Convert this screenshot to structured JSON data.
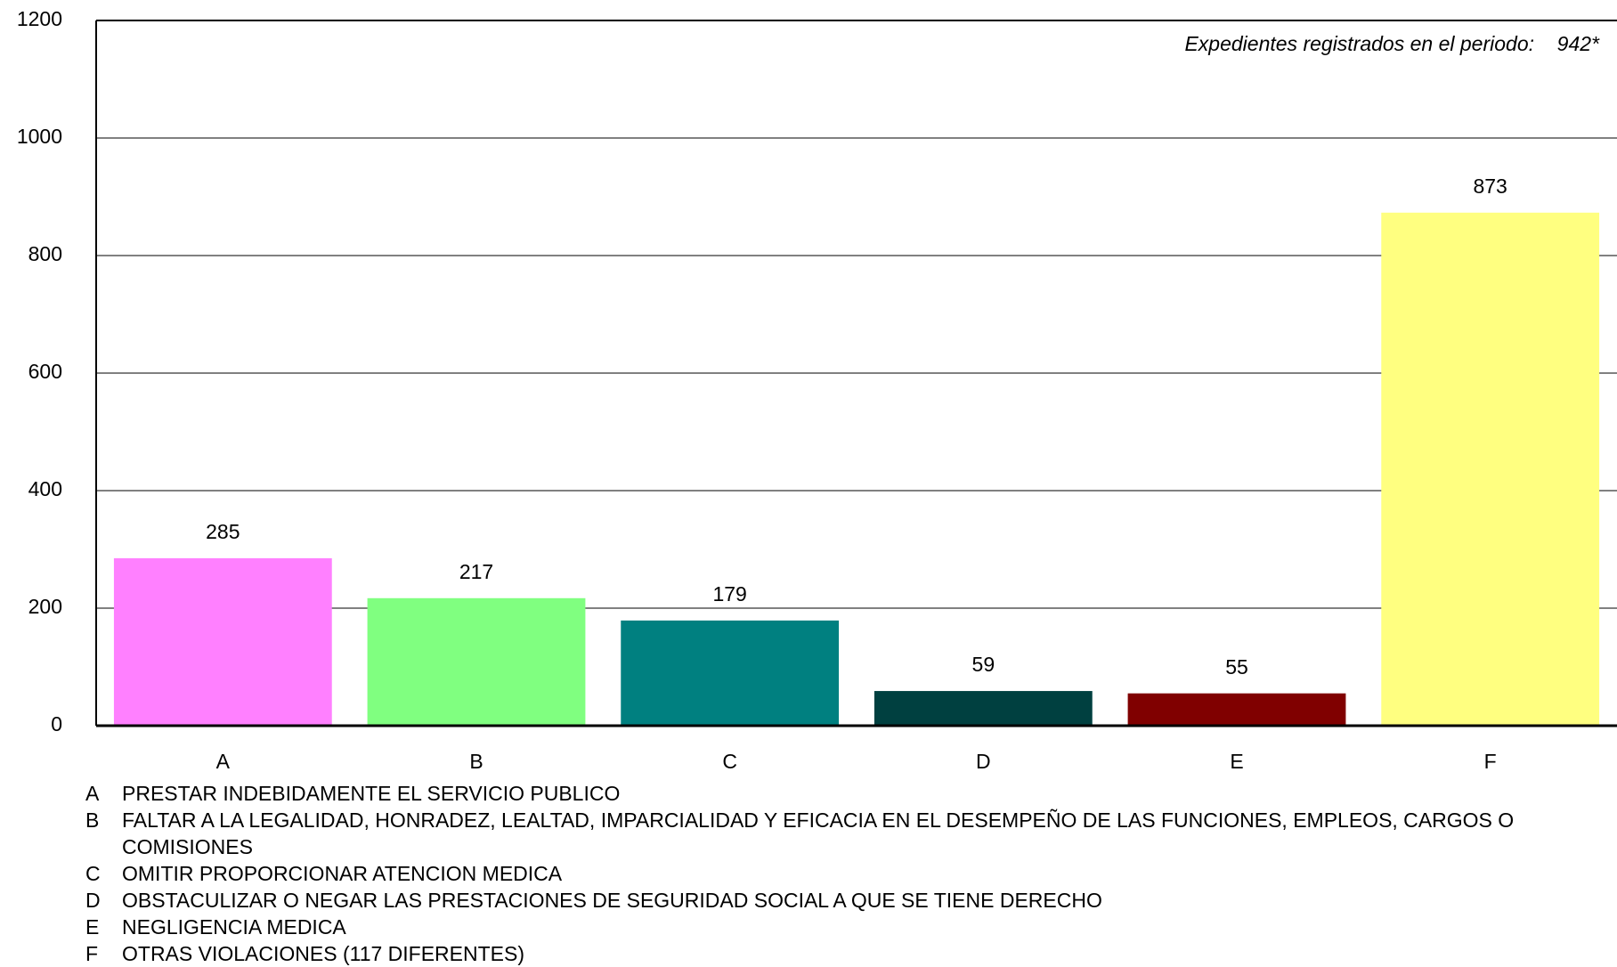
{
  "chart_data": {
    "type": "bar",
    "annotation": "Expedientes registrados en el periodo:",
    "annotation_value": "942*",
    "categories": [
      "A",
      "B",
      "C",
      "D",
      "E",
      "F"
    ],
    "values": [
      285,
      217,
      179,
      59,
      55,
      873
    ],
    "colors": [
      "#ff80ff",
      "#80ff80",
      "#008080",
      "#004040",
      "#800000",
      "#ffff80"
    ],
    "ylim": [
      0,
      1200
    ],
    "yticks": [
      0,
      200,
      400,
      600,
      800,
      1000,
      1200
    ],
    "grid": true,
    "legend_items": [
      {
        "letter": "A",
        "text": "PRESTAR INDEBIDAMENTE EL SERVICIO PUBLICO"
      },
      {
        "letter": "B",
        "text": "FALTAR A LA LEGALIDAD, HONRADEZ, LEALTAD, IMPARCIALIDAD Y EFICACIA EN EL DESEMPEÑO DE LAS FUNCIONES, EMPLEOS, CARGOS O COMISIONES"
      },
      {
        "letter": "C",
        "text": "OMITIR PROPORCIONAR ATENCION MEDICA"
      },
      {
        "letter": "D",
        "text": "OBSTACULIZAR O NEGAR LAS PRESTACIONES DE SEGURIDAD SOCIAL A QUE SE TIENE DERECHO"
      },
      {
        "letter": "E",
        "text": "NEGLIGENCIA MEDICA"
      },
      {
        "letter": "F",
        "text": "OTRAS VIOLACIONES (117 DIFERENTES)"
      }
    ]
  }
}
